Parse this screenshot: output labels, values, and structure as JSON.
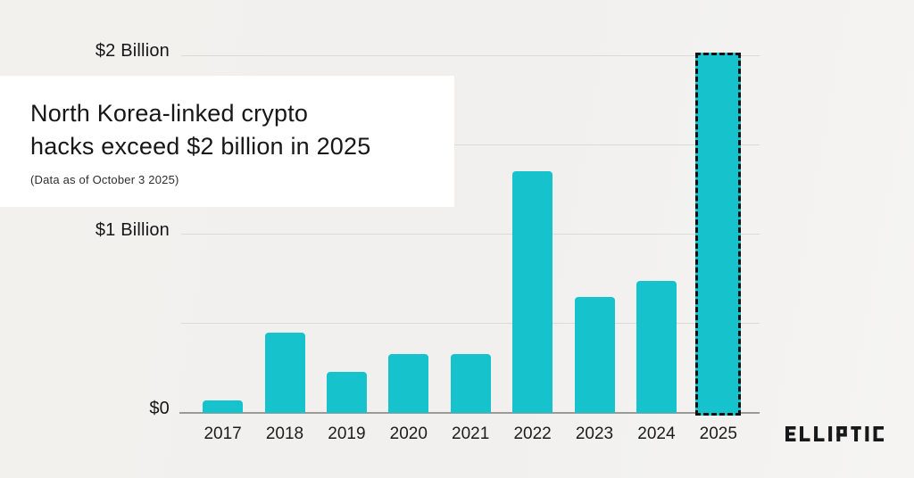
{
  "title_card": {
    "title_line1": "North Korea-linked crypto",
    "title_line2": "hacks exceed $2 billion in 2025",
    "subtitle": "(Data as of October 3 2025)"
  },
  "brand": {
    "logo_text": "ELLIPTIC",
    "logo_color": "#17181a"
  },
  "chart_data": {
    "type": "bar",
    "title": "North Korea-linked crypto hacks exceed $2 billion in 2025",
    "subtitle": "(Data as of October 3 2025)",
    "unit": "billions of USD",
    "categories": [
      "2017",
      "2018",
      "2019",
      "2020",
      "2021",
      "2022",
      "2023",
      "2024",
      "2025"
    ],
    "values": [
      0.07,
      0.45,
      0.23,
      0.33,
      0.33,
      1.35,
      0.65,
      0.74,
      2.0
    ],
    "bar_color": "#16c2cc",
    "highlight_category": "2025",
    "highlight_style": "black dashed outline",
    "grid": true,
    "legend": false,
    "ylim": [
      0,
      2.05
    ],
    "y_axis": [
      {
        "value": 2,
        "label": "$2 Billion"
      },
      {
        "value": 1.5,
        "label": ""
      },
      {
        "value": 1,
        "label": "$1 Billion"
      },
      {
        "value": 0.5,
        "label": ""
      },
      {
        "value": 0,
        "label": "$0"
      }
    ]
  }
}
